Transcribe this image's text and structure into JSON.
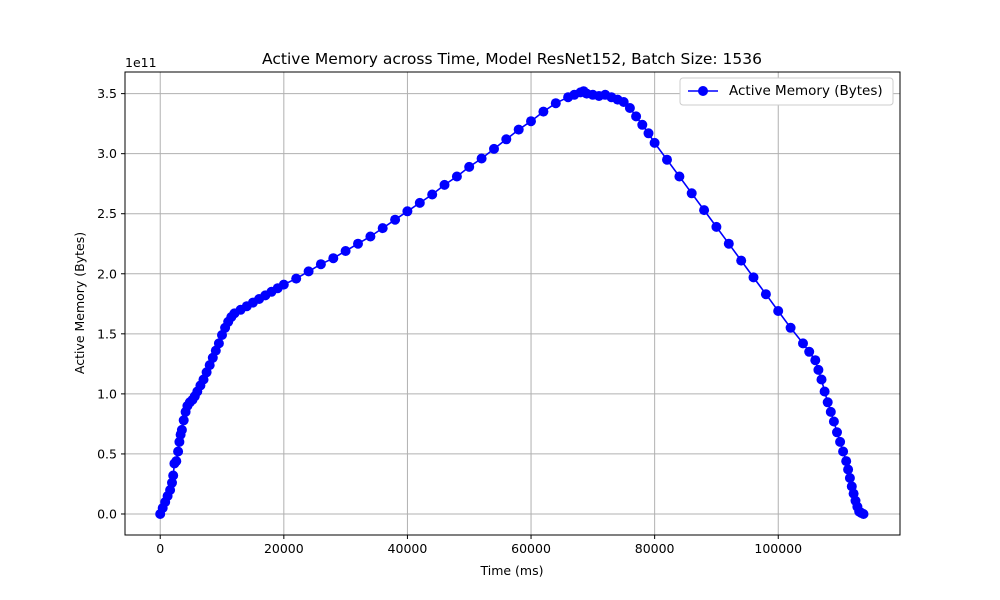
{
  "chart_data": {
    "type": "line",
    "title": "Active Memory across Time, Model ResNet152, Batch Size: 1536",
    "xlabel": "Time (ms)",
    "ylabel": "Active Memory (Bytes)",
    "y_offset_label": "1e11",
    "xlim": [
      -5700,
      119700
    ],
    "ylim": [
      -0.175,
      3.68
    ],
    "x_ticks": [
      0,
      20000,
      40000,
      60000,
      80000,
      100000
    ],
    "x_tick_labels": [
      "0",
      "20000",
      "40000",
      "60000",
      "80000",
      "100000"
    ],
    "y_ticks": [
      0.0,
      0.5,
      1.0,
      1.5,
      2.0,
      2.5,
      3.0,
      3.5
    ],
    "y_tick_labels": [
      "0.0",
      "0.5",
      "1.0",
      "1.5",
      "2.0",
      "2.5",
      "3.0",
      "3.5"
    ],
    "grid": true,
    "legend_position": "top-right",
    "series": [
      {
        "name": "Active Memory (Bytes)",
        "color": "#0000ff",
        "marker": "circle",
        "x": [
          0,
          400,
          800,
          1200,
          1600,
          1900,
          2100,
          2300,
          2600,
          2900,
          3100,
          3300,
          3500,
          3800,
          4100,
          4400,
          4800,
          5200,
          5600,
          6000,
          6500,
          7000,
          7500,
          8000,
          8500,
          9000,
          9500,
          10000,
          10500,
          11000,
          11500,
          12000,
          13000,
          14000,
          15000,
          16000,
          17000,
          18000,
          19000,
          20000,
          22000,
          24000,
          26000,
          28000,
          30000,
          32000,
          34000,
          36000,
          38000,
          40000,
          42000,
          44000,
          46000,
          48000,
          50000,
          52000,
          54000,
          56000,
          58000,
          60000,
          62000,
          64000,
          66000,
          67000,
          68000,
          68500,
          69000,
          70000,
          71000,
          72000,
          73000,
          74000,
          75000,
          76000,
          77000,
          78000,
          79000,
          80000,
          82000,
          84000,
          86000,
          88000,
          90000,
          92000,
          94000,
          96000,
          98000,
          100000,
          102000,
          104000,
          105000,
          106000,
          106500,
          107000,
          107500,
          108000,
          108500,
          109000,
          109500,
          110000,
          110500,
          111000,
          111300,
          111600,
          111900,
          112200,
          112500,
          112800,
          113100,
          113400,
          113800
        ],
        "values": [
          0.0,
          0.05,
          0.1,
          0.15,
          0.2,
          0.26,
          0.32,
          0.42,
          0.44,
          0.52,
          0.6,
          0.66,
          0.7,
          0.78,
          0.85,
          0.9,
          0.93,
          0.95,
          0.98,
          1.02,
          1.07,
          1.12,
          1.18,
          1.24,
          1.3,
          1.36,
          1.42,
          1.49,
          1.55,
          1.6,
          1.64,
          1.67,
          1.7,
          1.73,
          1.76,
          1.79,
          1.82,
          1.85,
          1.88,
          1.91,
          1.96,
          2.02,
          2.08,
          2.13,
          2.19,
          2.25,
          2.31,
          2.38,
          2.45,
          2.52,
          2.59,
          2.66,
          2.74,
          2.81,
          2.89,
          2.96,
          3.04,
          3.12,
          3.2,
          3.27,
          3.35,
          3.42,
          3.47,
          3.49,
          3.51,
          3.52,
          3.5,
          3.49,
          3.48,
          3.49,
          3.47,
          3.45,
          3.43,
          3.38,
          3.31,
          3.24,
          3.17,
          3.09,
          2.95,
          2.81,
          2.67,
          2.53,
          2.39,
          2.25,
          2.11,
          1.97,
          1.83,
          1.69,
          1.55,
          1.42,
          1.35,
          1.28,
          1.2,
          1.12,
          1.02,
          0.93,
          0.85,
          0.77,
          0.68,
          0.6,
          0.52,
          0.44,
          0.37,
          0.3,
          0.23,
          0.17,
          0.11,
          0.06,
          0.02,
          0.01,
          0.0
        ]
      }
    ]
  }
}
